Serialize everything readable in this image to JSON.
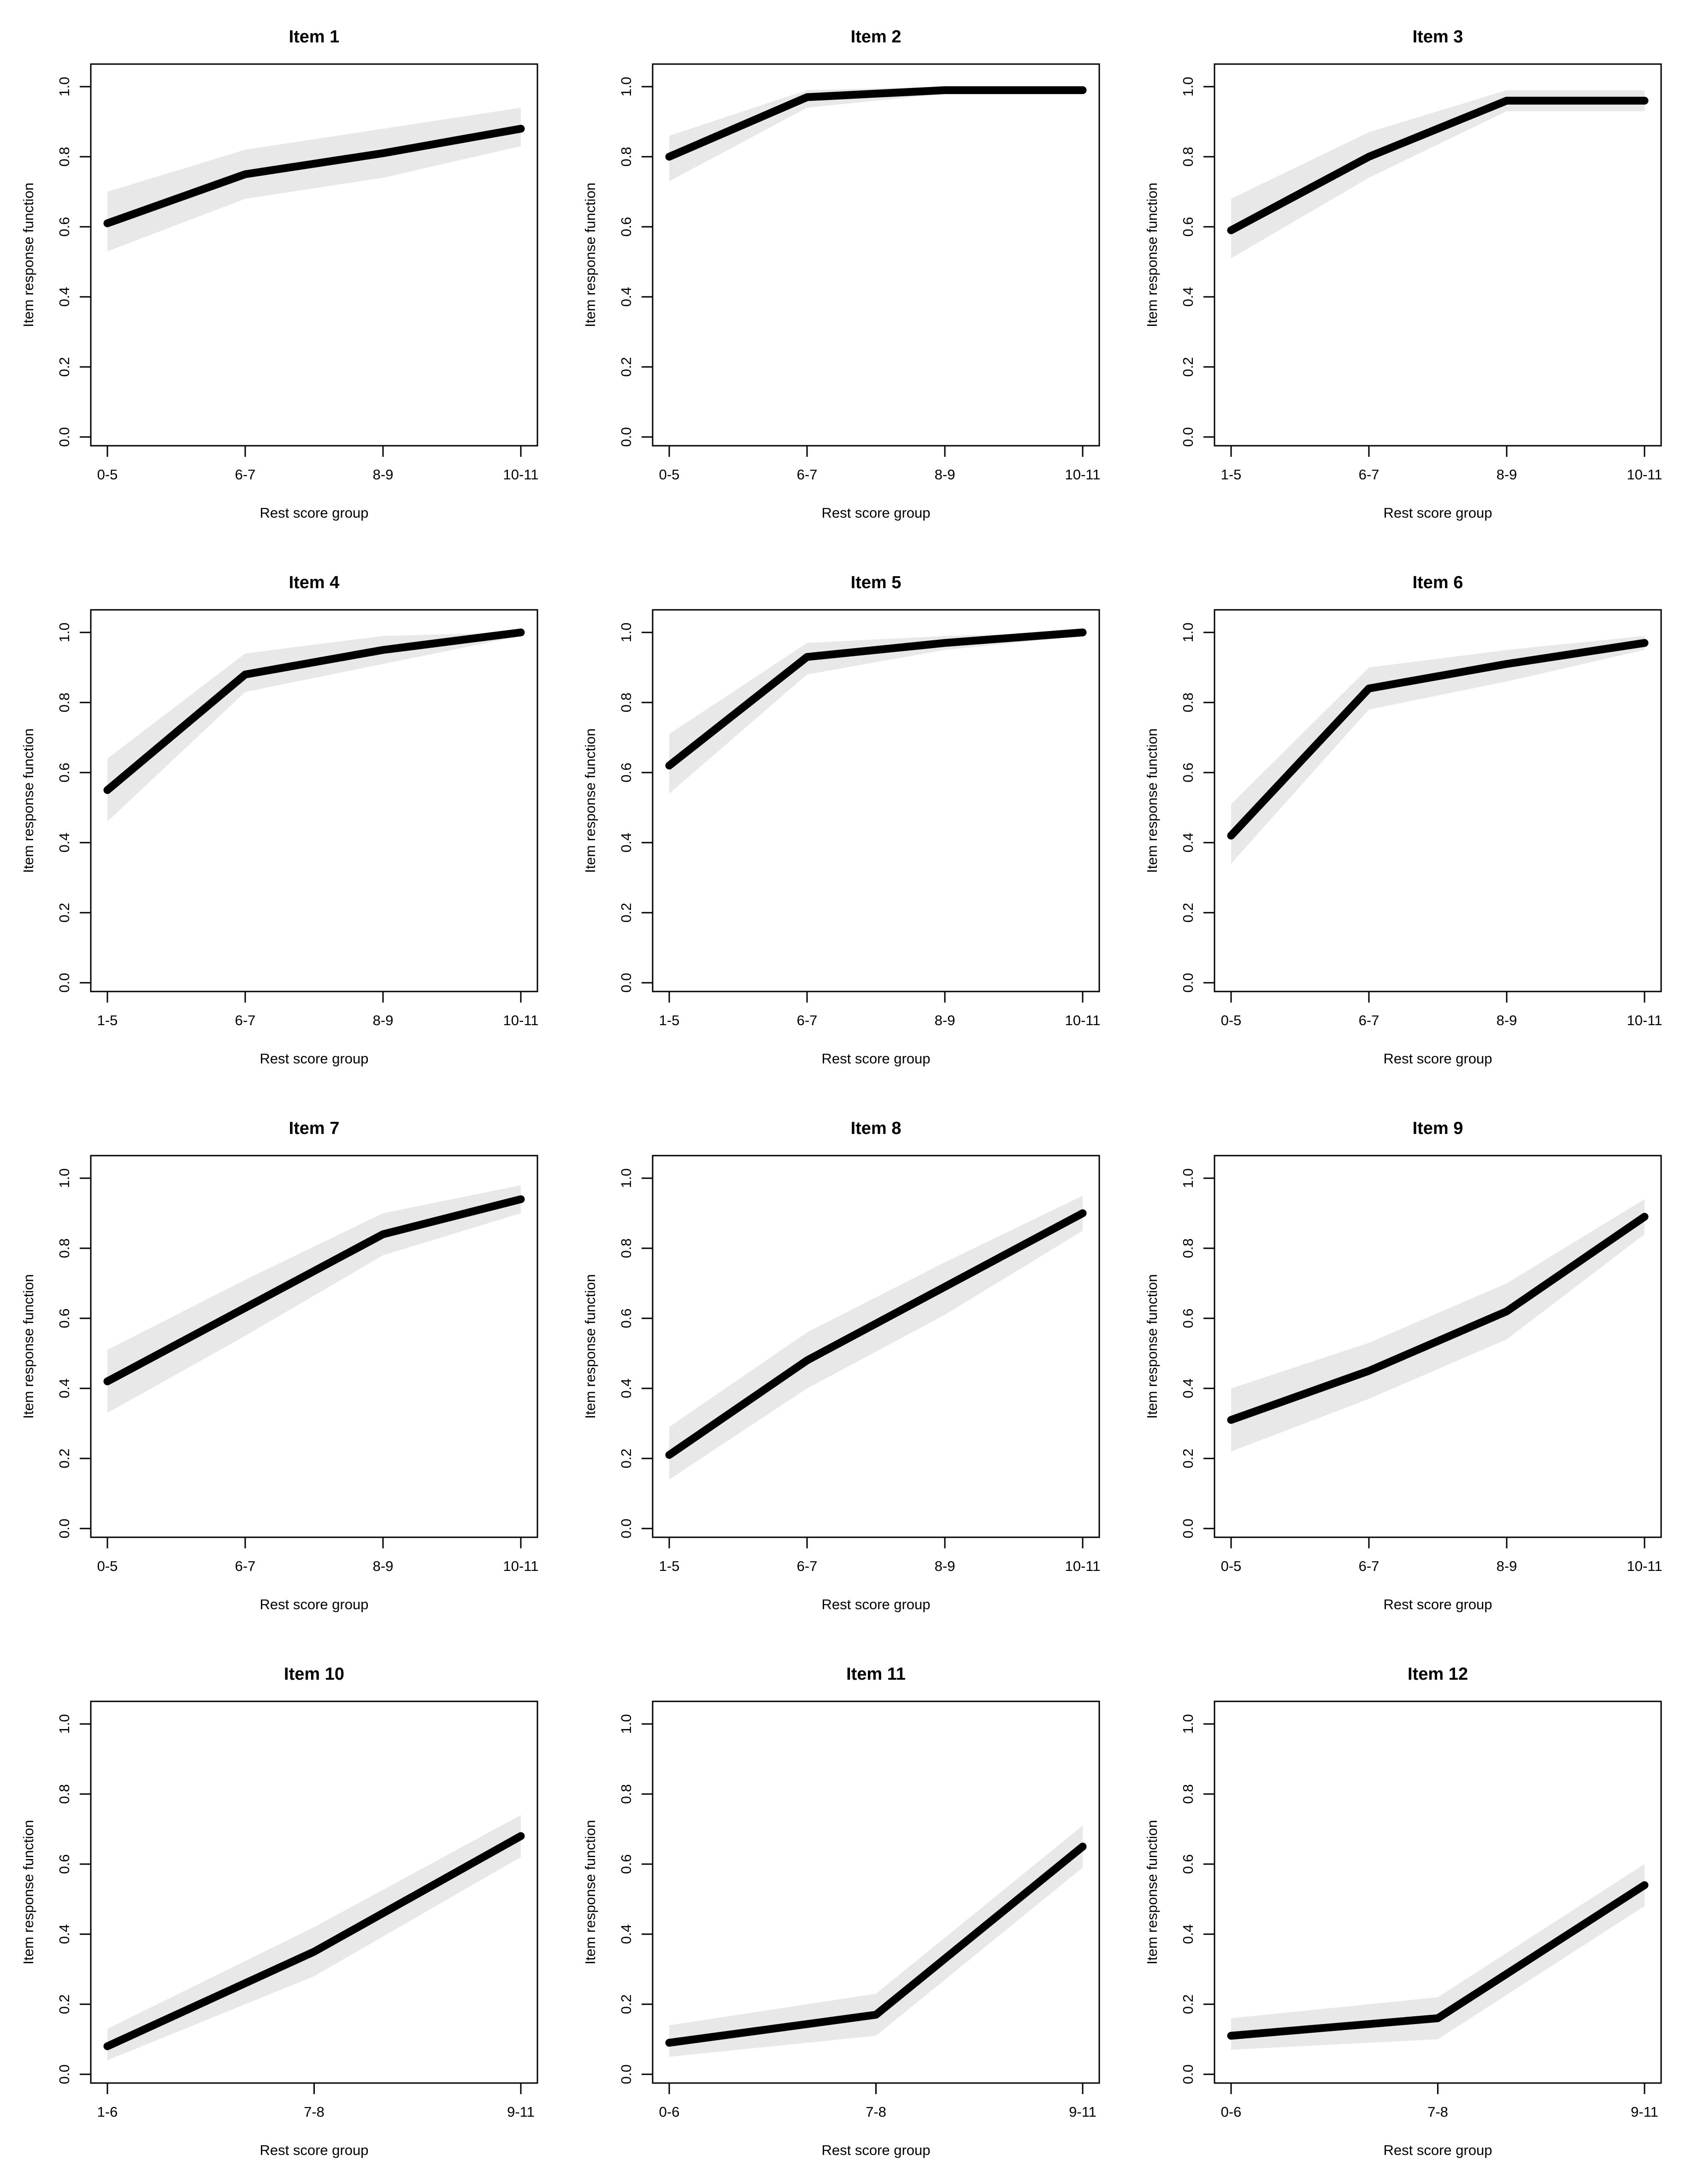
{
  "figure": {
    "description_y_axis": "Item response function",
    "description_x_axis": "Rest score group"
  },
  "chart_data": [
    {
      "type": "line",
      "title": "Item 1",
      "xlabel": "Rest score group",
      "ylabel": "Item response function",
      "ylim": [
        0,
        1
      ],
      "yticks": [
        "0.0",
        "0.2",
        "0.4",
        "0.6",
        "0.8",
        "1.0"
      ],
      "categories": [
        "0-5",
        "6-7",
        "8-9",
        "10-11"
      ],
      "series": [
        {
          "name": "Item response function",
          "values": [
            0.61,
            0.75,
            0.81,
            0.88
          ]
        },
        {
          "name": "lower band",
          "values": [
            0.53,
            0.68,
            0.74,
            0.83
          ]
        },
        {
          "name": "upper band",
          "values": [
            0.7,
            0.82,
            0.88,
            0.94
          ]
        }
      ],
      "color": "#000000",
      "band_color": "#e8e8e8"
    },
    {
      "type": "line",
      "title": "Item 2",
      "xlabel": "Rest score group",
      "ylabel": "Item response function",
      "ylim": [
        0,
        1
      ],
      "yticks": [
        "0.0",
        "0.2",
        "0.4",
        "0.6",
        "0.8",
        "1.0"
      ],
      "categories": [
        "0-5",
        "6-7",
        "8-9",
        "10-11"
      ],
      "series": [
        {
          "name": "Item response function",
          "values": [
            0.8,
            0.97,
            0.99,
            0.99
          ]
        },
        {
          "name": "lower band",
          "values": [
            0.73,
            0.94,
            0.98,
            0.98
          ]
        },
        {
          "name": "upper band",
          "values": [
            0.86,
            0.99,
            1.0,
            1.0
          ]
        }
      ],
      "color": "#000000",
      "band_color": "#e8e8e8"
    },
    {
      "type": "line",
      "title": "Item 3",
      "xlabel": "Rest score group",
      "ylabel": "Item response function",
      "ylim": [
        0,
        1
      ],
      "yticks": [
        "0.0",
        "0.2",
        "0.4",
        "0.6",
        "0.8",
        "1.0"
      ],
      "categories": [
        "1-5",
        "6-7",
        "8-9",
        "10-11"
      ],
      "series": [
        {
          "name": "Item response function",
          "values": [
            0.59,
            0.8,
            0.96,
            0.96
          ]
        },
        {
          "name": "lower band",
          "values": [
            0.51,
            0.74,
            0.93,
            0.93
          ]
        },
        {
          "name": "upper band",
          "values": [
            0.68,
            0.87,
            0.99,
            0.99
          ]
        }
      ],
      "color": "#000000",
      "band_color": "#e8e8e8"
    },
    {
      "type": "line",
      "title": "Item 4",
      "xlabel": "Rest score group",
      "ylabel": "Item response function",
      "ylim": [
        0,
        1
      ],
      "yticks": [
        "0.0",
        "0.2",
        "0.4",
        "0.6",
        "0.8",
        "1.0"
      ],
      "categories": [
        "1-5",
        "6-7",
        "8-9",
        "10-11"
      ],
      "series": [
        {
          "name": "Item response function",
          "values": [
            0.55,
            0.88,
            0.95,
            1.0
          ]
        },
        {
          "name": "lower band",
          "values": [
            0.46,
            0.83,
            0.91,
            0.99
          ]
        },
        {
          "name": "upper band",
          "values": [
            0.64,
            0.94,
            0.99,
            1.0
          ]
        }
      ],
      "color": "#000000",
      "band_color": "#e8e8e8"
    },
    {
      "type": "line",
      "title": "Item 5",
      "xlabel": "Rest score group",
      "ylabel": "Item response function",
      "ylim": [
        0,
        1
      ],
      "yticks": [
        "0.0",
        "0.2",
        "0.4",
        "0.6",
        "0.8",
        "1.0"
      ],
      "categories": [
        "1-5",
        "6-7",
        "8-9",
        "10-11"
      ],
      "series": [
        {
          "name": "Item response function",
          "values": [
            0.62,
            0.93,
            0.97,
            1.0
          ]
        },
        {
          "name": "lower band",
          "values": [
            0.54,
            0.88,
            0.95,
            0.99
          ]
        },
        {
          "name": "upper band",
          "values": [
            0.71,
            0.97,
            0.99,
            1.0
          ]
        }
      ],
      "color": "#000000",
      "band_color": "#e8e8e8"
    },
    {
      "type": "line",
      "title": "Item 6",
      "xlabel": "Rest score group",
      "ylabel": "Item response function",
      "ylim": [
        0,
        1
      ],
      "yticks": [
        "0.0",
        "0.2",
        "0.4",
        "0.6",
        "0.8",
        "1.0"
      ],
      "categories": [
        "0-5",
        "6-7",
        "8-9",
        "10-11"
      ],
      "series": [
        {
          "name": "Item response function",
          "values": [
            0.42,
            0.84,
            0.91,
            0.97
          ]
        },
        {
          "name": "lower band",
          "values": [
            0.34,
            0.78,
            0.86,
            0.95
          ]
        },
        {
          "name": "upper band",
          "values": [
            0.51,
            0.9,
            0.95,
            0.99
          ]
        }
      ],
      "color": "#000000",
      "band_color": "#e8e8e8"
    },
    {
      "type": "line",
      "title": "Item 7",
      "xlabel": "Rest score group",
      "ylabel": "Item response function",
      "ylim": [
        0,
        1
      ],
      "yticks": [
        "0.0",
        "0.2",
        "0.4",
        "0.6",
        "0.8",
        "1.0"
      ],
      "categories": [
        "0-5",
        "6-7",
        "8-9",
        "10-11"
      ],
      "series": [
        {
          "name": "Item response function",
          "values": [
            0.42,
            0.63,
            0.84,
            0.94
          ]
        },
        {
          "name": "lower band",
          "values": [
            0.33,
            0.55,
            0.78,
            0.9
          ]
        },
        {
          "name": "upper band",
          "values": [
            0.51,
            0.71,
            0.9,
            0.98
          ]
        }
      ],
      "color": "#000000",
      "band_color": "#e8e8e8"
    },
    {
      "type": "line",
      "title": "Item 8",
      "xlabel": "Rest score group",
      "ylabel": "Item response function",
      "ylim": [
        0,
        1
      ],
      "yticks": [
        "0.0",
        "0.2",
        "0.4",
        "0.6",
        "0.8",
        "1.0"
      ],
      "categories": [
        "1-5",
        "6-7",
        "8-9",
        "10-11"
      ],
      "series": [
        {
          "name": "Item response function",
          "values": [
            0.21,
            0.48,
            0.69,
            0.9
          ]
        },
        {
          "name": "lower band",
          "values": [
            0.14,
            0.4,
            0.61,
            0.85
          ]
        },
        {
          "name": "upper band",
          "values": [
            0.29,
            0.56,
            0.76,
            0.95
          ]
        }
      ],
      "color": "#000000",
      "band_color": "#e8e8e8"
    },
    {
      "type": "line",
      "title": "Item 9",
      "xlabel": "Rest score group",
      "ylabel": "Item response function",
      "ylim": [
        0,
        1
      ],
      "yticks": [
        "0.0",
        "0.2",
        "0.4",
        "0.6",
        "0.8",
        "1.0"
      ],
      "categories": [
        "0-5",
        "6-7",
        "8-9",
        "10-11"
      ],
      "series": [
        {
          "name": "Item response function",
          "values": [
            0.31,
            0.45,
            0.62,
            0.89
          ]
        },
        {
          "name": "lower band",
          "values": [
            0.22,
            0.37,
            0.54,
            0.84
          ]
        },
        {
          "name": "upper band",
          "values": [
            0.4,
            0.53,
            0.7,
            0.94
          ]
        }
      ],
      "color": "#000000",
      "band_color": "#e8e8e8"
    },
    {
      "type": "line",
      "title": "Item 10",
      "xlabel": "Rest score group",
      "ylabel": "Item response function",
      "ylim": [
        0,
        1
      ],
      "yticks": [
        "0.0",
        "0.2",
        "0.4",
        "0.6",
        "0.8",
        "1.0"
      ],
      "categories": [
        "1-6",
        "7-8",
        "9-11"
      ],
      "series": [
        {
          "name": "Item response function",
          "values": [
            0.08,
            0.35,
            0.68
          ]
        },
        {
          "name": "lower band",
          "values": [
            0.04,
            0.28,
            0.62
          ]
        },
        {
          "name": "upper band",
          "values": [
            0.13,
            0.42,
            0.74
          ]
        }
      ],
      "color": "#000000",
      "band_color": "#e8e8e8"
    },
    {
      "type": "line",
      "title": "Item 11",
      "xlabel": "Rest score group",
      "ylabel": "Item response function",
      "ylim": [
        0,
        1
      ],
      "yticks": [
        "0.0",
        "0.2",
        "0.4",
        "0.6",
        "0.8",
        "1.0"
      ],
      "categories": [
        "0-6",
        "7-8",
        "9-11"
      ],
      "series": [
        {
          "name": "Item response function",
          "values": [
            0.09,
            0.17,
            0.65
          ]
        },
        {
          "name": "lower band",
          "values": [
            0.05,
            0.11,
            0.59
          ]
        },
        {
          "name": "upper band",
          "values": [
            0.14,
            0.23,
            0.71
          ]
        }
      ],
      "color": "#000000",
      "band_color": "#e8e8e8"
    },
    {
      "type": "line",
      "title": "Item 12",
      "xlabel": "Rest score group",
      "ylabel": "Item response function",
      "ylim": [
        0,
        1
      ],
      "yticks": [
        "0.0",
        "0.2",
        "0.4",
        "0.6",
        "0.8",
        "1.0"
      ],
      "categories": [
        "0-6",
        "7-8",
        "9-11"
      ],
      "series": [
        {
          "name": "Item response function",
          "values": [
            0.11,
            0.16,
            0.54
          ]
        },
        {
          "name": "lower band",
          "values": [
            0.07,
            0.1,
            0.48
          ]
        },
        {
          "name": "upper band",
          "values": [
            0.16,
            0.22,
            0.6
          ]
        }
      ],
      "color": "#000000",
      "band_color": "#e8e8e8"
    }
  ]
}
